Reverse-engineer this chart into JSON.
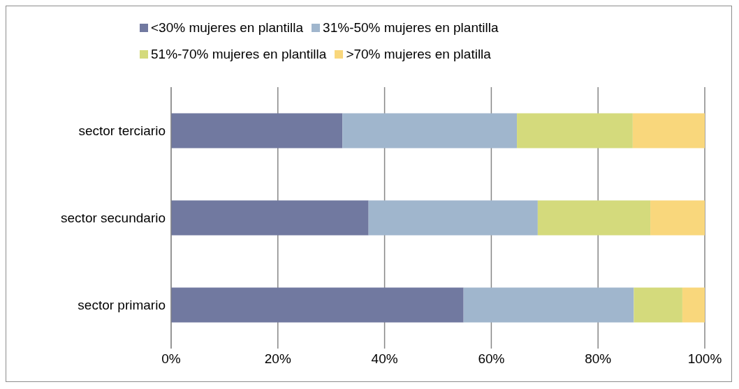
{
  "chart_data": {
    "type": "bar",
    "orientation": "horizontal",
    "stacked": true,
    "categories": [
      "sector terciario",
      "sector secundario",
      "sector primario"
    ],
    "series": [
      {
        "name": "<30% mujeres en plantilla",
        "color": "#7179a0",
        "values": [
          32.1,
          37.0,
          54.8
        ]
      },
      {
        "name": "31%-50% mujeres en plantilla",
        "color": "#a0b6cd",
        "values": [
          32.7,
          31.7,
          31.9
        ]
      },
      {
        "name": "51%-70% mujeres en plantilla",
        "color": "#d4da7c",
        "values": [
          21.7,
          21.1,
          9.1
        ]
      },
      {
        "name": ">70% mujeres en platilla",
        "color": "#f9d77c",
        "values": [
          13.5,
          10.2,
          4.2
        ]
      }
    ],
    "xlim": [
      0,
      100
    ],
    "xticks": [
      {
        "value": 0,
        "label": "0%"
      },
      {
        "value": 20,
        "label": "20%"
      },
      {
        "value": 40,
        "label": "40%"
      },
      {
        "value": 60,
        "label": "60%"
      },
      {
        "value": 80,
        "label": "80%"
      },
      {
        "value": 100,
        "label": "100%"
      }
    ],
    "grid": "x",
    "legend": "top"
  }
}
